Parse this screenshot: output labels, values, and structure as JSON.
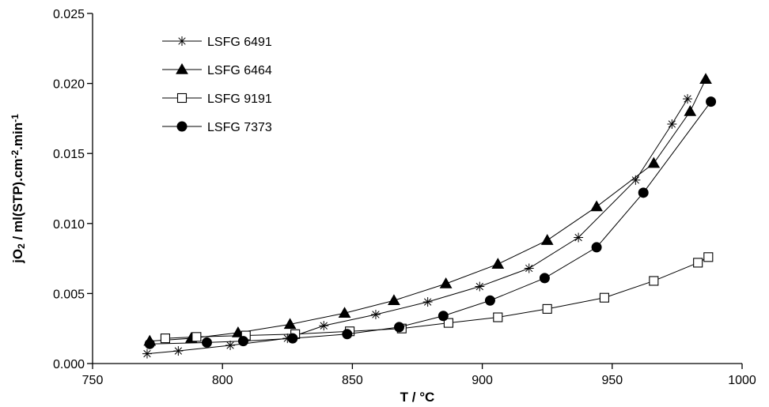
{
  "chart_data": {
    "type": "line",
    "xlabel": "T / °C",
    "ylabel_parts": [
      "jO",
      "2",
      " / ml(STP).cm",
      "-2",
      ".min",
      "-1"
    ],
    "xlim": [
      750,
      1000
    ],
    "ylim": [
      0,
      0.025
    ],
    "x_ticks": [
      "750",
      "800",
      "850",
      "900",
      "950",
      "1000"
    ],
    "y_ticks": [
      "0.000",
      "0.005",
      "0.010",
      "0.015",
      "0.020",
      "0.025"
    ],
    "grid": false,
    "legend_position": "top-left",
    "series": [
      {
        "name": "LSFG 6491",
        "marker": "asterisk",
        "x": [
          771,
          783,
          803,
          825,
          839,
          859,
          879,
          899,
          918,
          937,
          959,
          973,
          979
        ],
        "y": [
          0.0007,
          0.0009,
          0.0013,
          0.0018,
          0.0027,
          0.0035,
          0.0044,
          0.0055,
          0.0068,
          0.009,
          0.0131,
          0.0171,
          0.0189
        ]
      },
      {
        "name": "LSFG 6464",
        "marker": "filled-triangle",
        "x": [
          772,
          788,
          806,
          826,
          847,
          866,
          886,
          906,
          925,
          944,
          966,
          980,
          986
        ],
        "y": [
          0.0016,
          0.0018,
          0.0022,
          0.0028,
          0.0036,
          0.0045,
          0.0057,
          0.0071,
          0.0088,
          0.0112,
          0.0143,
          0.018,
          0.0203
        ]
      },
      {
        "name": "LSFG 9191",
        "marker": "open-square",
        "x": [
          778,
          790,
          809,
          828,
          849,
          869,
          887,
          906,
          925,
          947,
          966,
          983,
          987
        ],
        "y": [
          0.0018,
          0.0019,
          0.002,
          0.0021,
          0.0023,
          0.0025,
          0.0029,
          0.0033,
          0.0039,
          0.0047,
          0.0059,
          0.0072,
          0.0076
        ]
      },
      {
        "name": "LSFG 7373",
        "marker": "filled-circle",
        "x": [
          772,
          794,
          808,
          827,
          848,
          868,
          885,
          903,
          924,
          944,
          962,
          988
        ],
        "y": [
          0.0014,
          0.0015,
          0.0016,
          0.0018,
          0.0021,
          0.0026,
          0.0034,
          0.0045,
          0.0061,
          0.0083,
          0.0122,
          0.0187
        ]
      }
    ]
  }
}
